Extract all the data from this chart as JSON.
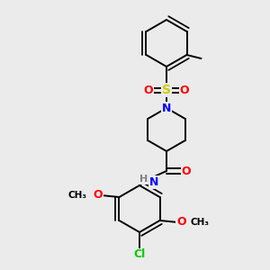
{
  "background_color": "#EBEBEB",
  "atom_colors": {
    "C": "#000000",
    "N": "#0000FF",
    "O": "#FF0000",
    "S": "#CCCC00",
    "Cl": "#00CC00",
    "H": "#808080"
  },
  "bond_color": "#000000",
  "bond_width": 1.4,
  "font_size_atom": 9,
  "font_size_small": 7.5
}
